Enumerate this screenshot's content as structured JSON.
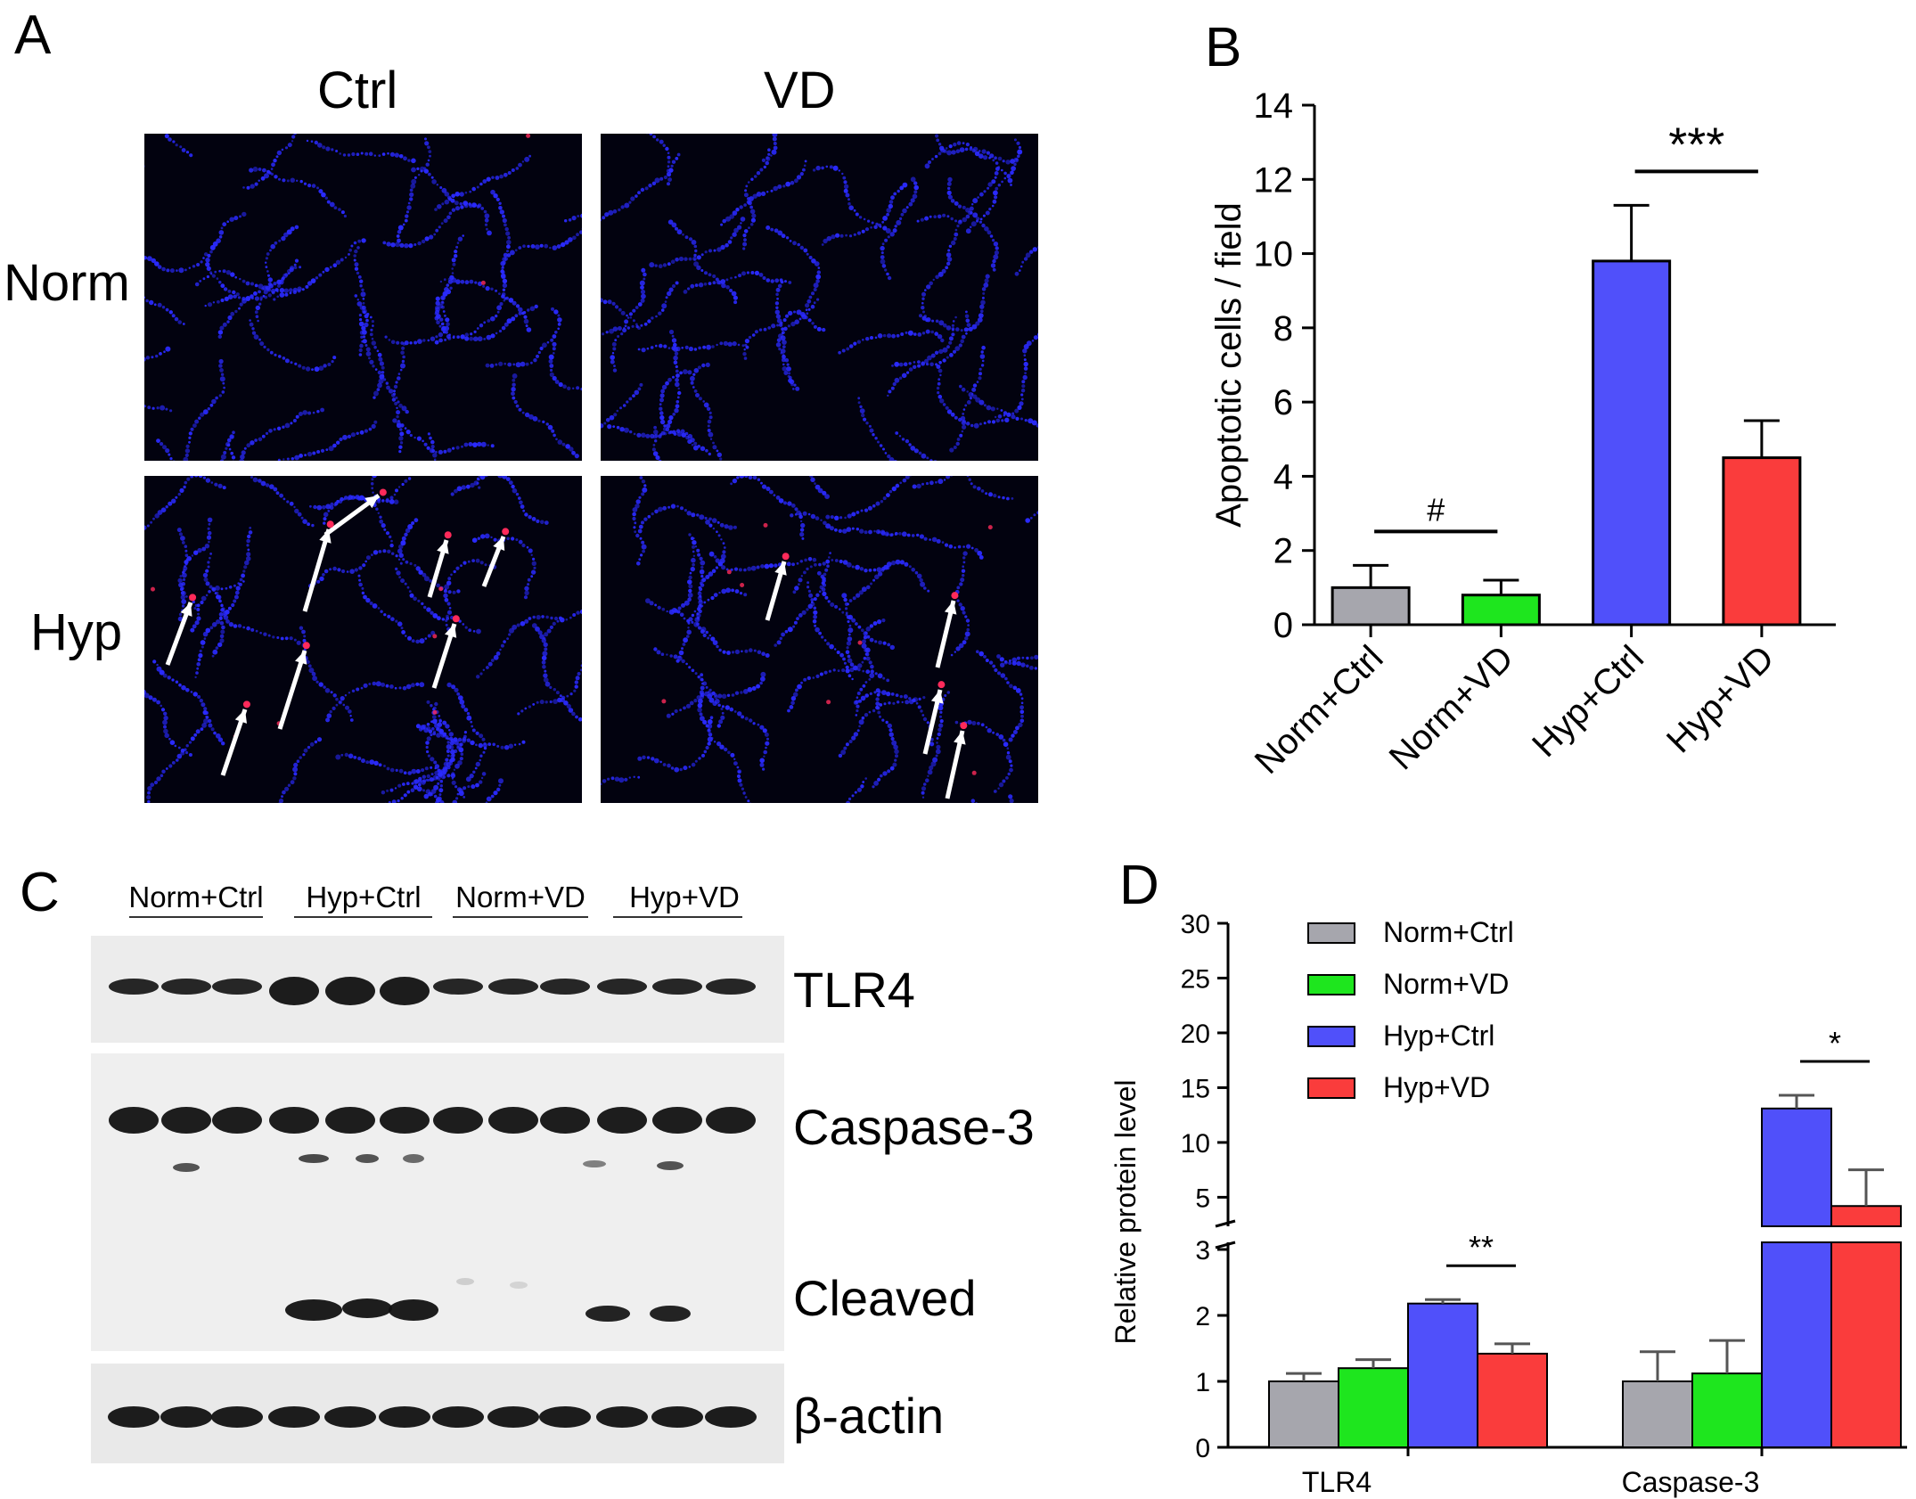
{
  "panels": {
    "a": {
      "letter": "A",
      "col_labels": [
        "Ctrl",
        "VD"
      ],
      "row_labels": [
        "Norm",
        "Hyp"
      ]
    },
    "b": {
      "letter": "B"
    },
    "c": {
      "letter": "C",
      "lane_groups": [
        "Norm+Ctrl",
        "Hyp+Ctrl",
        "Norm+VD",
        "Hyp+VD"
      ],
      "blot_labels": {
        "tlr4": "TLR4",
        "caspase3": "Caspase-3",
        "cleaved": "Cleaved",
        "actin": "β-actin"
      }
    },
    "d": {
      "letter": "D"
    }
  },
  "colors": {
    "gray": "#a6a6ad",
    "green": "#1ee61e",
    "blue": "#5050fa",
    "red": "#fa3c3c",
    "nuclei": "#2a2aff",
    "apoptotic": "#ff2a5a"
  },
  "chart_data": [
    {
      "type": "bar",
      "ylabel": "Apoptotic cells / field",
      "categories": [
        "Norm+Ctrl",
        "Norm+VD",
        "Hyp+Ctrl",
        "Hyp+VD"
      ],
      "values": [
        1.0,
        0.8,
        9.8,
        4.5
      ],
      "errors": [
        0.6,
        0.4,
        1.5,
        1.0
      ],
      "ylim": [
        0,
        14
      ],
      "yticks": [
        0,
        2,
        4,
        6,
        8,
        10,
        12,
        14
      ],
      "annotations": [
        {
          "text": "#",
          "between": [
            "Norm+Ctrl",
            "Norm+VD"
          ]
        },
        {
          "text": "***",
          "between": [
            "Hyp+Ctrl",
            "Hyp+VD"
          ]
        }
      ]
    },
    {
      "type": "bar",
      "ylabel": "Relative protein level",
      "categories": [
        "TLR4",
        "Caspase-3"
      ],
      "series": [
        {
          "name": "Norm+Ctrl",
          "values": [
            1.0,
            1.0
          ],
          "errors": [
            0.12,
            0.45
          ]
        },
        {
          "name": "Norm+VD",
          "values": [
            1.2,
            1.12
          ],
          "errors": [
            0.13,
            0.5
          ]
        },
        {
          "name": "Hyp+Ctrl",
          "values": [
            2.18,
            13.1
          ],
          "errors": [
            0.06,
            1.2
          ]
        },
        {
          "name": "Hyp+VD",
          "values": [
            1.42,
            4.2
          ],
          "errors": [
            0.15,
            3.3
          ]
        }
      ],
      "broken_axis": {
        "lower": [
          0,
          3
        ],
        "upper": [
          3,
          30
        ]
      },
      "yticks_lower": [
        0,
        1,
        2,
        3
      ],
      "yticks_upper": [
        5,
        10,
        15,
        20,
        25,
        30
      ],
      "legend": "top-left",
      "annotations": [
        {
          "text": "**",
          "category": "TLR4",
          "between": [
            "Hyp+Ctrl",
            "Hyp+VD"
          ]
        },
        {
          "text": "*",
          "category": "Caspase-3",
          "between": [
            "Hyp+Ctrl",
            "Hyp+VD"
          ]
        }
      ]
    }
  ]
}
